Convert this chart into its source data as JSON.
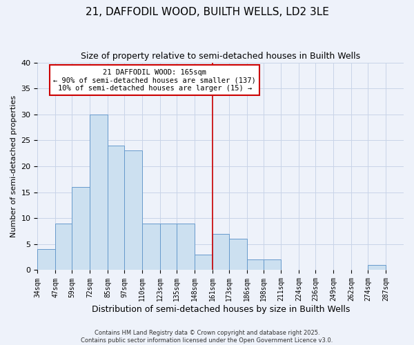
{
  "title": "21, DAFFODIL WOOD, BUILTH WELLS, LD2 3LE",
  "subtitle": "Size of property relative to semi-detached houses in Builth Wells",
  "xlabel": "Distribution of semi-detached houses by size in Builth Wells",
  "ylabel": "Number of semi-detached properties",
  "bar_values": [
    4,
    9,
    16,
    30,
    24,
    23,
    9,
    9,
    9,
    3,
    7,
    6,
    2,
    2,
    0,
    0,
    0,
    0,
    0,
    1,
    0
  ],
  "bin_edges": [
    34,
    47,
    59,
    72,
    85,
    97,
    110,
    123,
    135,
    148,
    161,
    173,
    186,
    198,
    211,
    224,
    236,
    249,
    262,
    274,
    287,
    300
  ],
  "tick_labels": [
    "34sqm",
    "47sqm",
    "59sqm",
    "72sqm",
    "85sqm",
    "97sqm",
    "110sqm",
    "123sqm",
    "135sqm",
    "148sqm",
    "161sqm",
    "173sqm",
    "186sqm",
    "198sqm",
    "211sqm",
    "224sqm",
    "236sqm",
    "249sqm",
    "262sqm",
    "274sqm",
    "287sqm"
  ],
  "bar_color": "#cce0f0",
  "bar_edge_color": "#6699cc",
  "vline_x": 161,
  "vline_color": "#cc0000",
  "ylim": [
    0,
    40
  ],
  "yticks": [
    0,
    5,
    10,
    15,
    20,
    25,
    30,
    35,
    40
  ],
  "grid_color": "#c8d4e8",
  "bg_color": "#eef2fa",
  "title_fontsize": 11,
  "subtitle_fontsize": 9,
  "annotation_title": "21 DAFFODIL WOOD: 165sqm",
  "annotation_line1": "← 90% of semi-detached houses are smaller (137)",
  "annotation_line2": "10% of semi-detached houses are larger (15) →",
  "annotation_box_color": "#ffffff",
  "annotation_box_edge": "#cc0000",
  "footer_line1": "Contains HM Land Registry data © Crown copyright and database right 2025.",
  "footer_line2": "Contains public sector information licensed under the Open Government Licence v3.0."
}
